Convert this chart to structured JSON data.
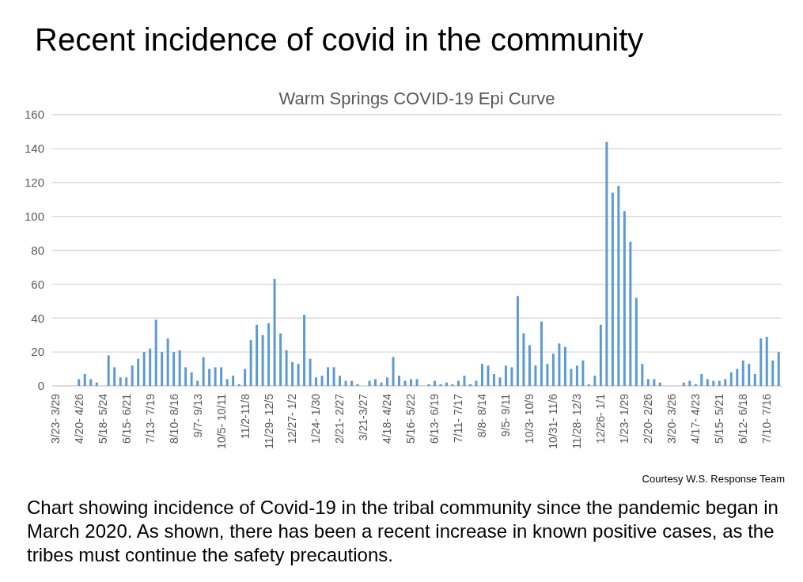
{
  "chart_data": {
    "type": "bar",
    "title": "Recent incidence of covid in the community",
    "subtitle": "Warm Springs COVID-19 Epi Curve",
    "categories": [
      "3/23- 3/29",
      null,
      null,
      null,
      "4/20- 4/26",
      null,
      null,
      null,
      "5/18- 5/24",
      null,
      null,
      null,
      "6/15- 6/21",
      null,
      null,
      null,
      "7/13- 7/19",
      null,
      null,
      null,
      "8/10- 8/16",
      null,
      null,
      null,
      "9/7- 9/13",
      null,
      null,
      null,
      "10/5- 10/11",
      null,
      null,
      null,
      "11/2-11/8",
      null,
      null,
      null,
      "11/29- 12/5",
      null,
      null,
      null,
      "12/27- 1/2",
      null,
      null,
      null,
      "1/24- 1/30",
      null,
      null,
      null,
      "2/21- 2/27",
      null,
      null,
      null,
      "3/21-3/27",
      null,
      null,
      null,
      "4/18- 4/24",
      null,
      null,
      null,
      "5/16- 5/22",
      null,
      null,
      null,
      "6/13- 6/19",
      null,
      null,
      null,
      "7/11- 7/17",
      null,
      null,
      null,
      "8/8- 8/14",
      null,
      null,
      null,
      "9/5- 9/11",
      null,
      null,
      null,
      "10/3- 10/9",
      null,
      null,
      null,
      "10/31- 11/6",
      null,
      null,
      null,
      "11/28- 12/3",
      null,
      null,
      null,
      "12/26- 1/1",
      null,
      null,
      null,
      "1/23- 1/29",
      null,
      null,
      null,
      "2/20- 2/26",
      null,
      null,
      null,
      "3/20- 3/26",
      null,
      null,
      null,
      "4/17- 4/23",
      null,
      null,
      null,
      "5/15- 5/21",
      null,
      null,
      null,
      "6/12- 6/18",
      null,
      null,
      null,
      "7/10- 7/16",
      null,
      null
    ],
    "values": [
      0,
      0,
      0,
      0,
      4,
      7,
      4,
      2,
      0,
      18,
      11,
      5,
      5,
      12,
      16,
      20,
      22,
      39,
      20,
      28,
      20,
      21,
      11,
      8,
      3,
      17,
      10,
      11,
      11,
      4,
      6,
      1,
      10,
      27,
      36,
      30,
      37,
      63,
      31,
      21,
      14,
      13,
      42,
      16,
      5,
      6,
      11,
      11,
      6,
      3,
      3,
      1,
      0,
      3,
      4,
      2,
      5,
      17,
      6,
      3,
      4,
      4,
      0,
      1,
      3,
      1,
      2,
      1,
      3,
      6,
      1,
      3,
      13,
      12,
      7,
      5,
      12,
      11,
      53,
      31,
      24,
      12,
      38,
      13,
      19,
      25,
      23,
      10,
      12,
      15,
      1,
      6,
      36,
      144,
      114,
      118,
      103,
      85,
      52,
      13,
      4,
      4,
      2,
      0,
      0,
      0,
      2,
      3,
      1,
      7,
      4,
      3,
      3,
      4,
      8,
      10,
      15,
      13,
      7,
      28,
      29,
      15,
      20
    ],
    "color": "#5b9bd5",
    "ylim": [
      0,
      160
    ],
    "yticks": [
      0,
      20,
      40,
      60,
      80,
      100,
      120,
      140,
      160
    ],
    "grid": "y",
    "annotations": [
      "Courtesy W.S. Response Team",
      "Chart showing incidence of Covid-19 in the tribal community since the pandemic began in March 2020. As shown, there has been a recent increase in known positive cases, as the tribes must continue the safety precautions."
    ]
  }
}
